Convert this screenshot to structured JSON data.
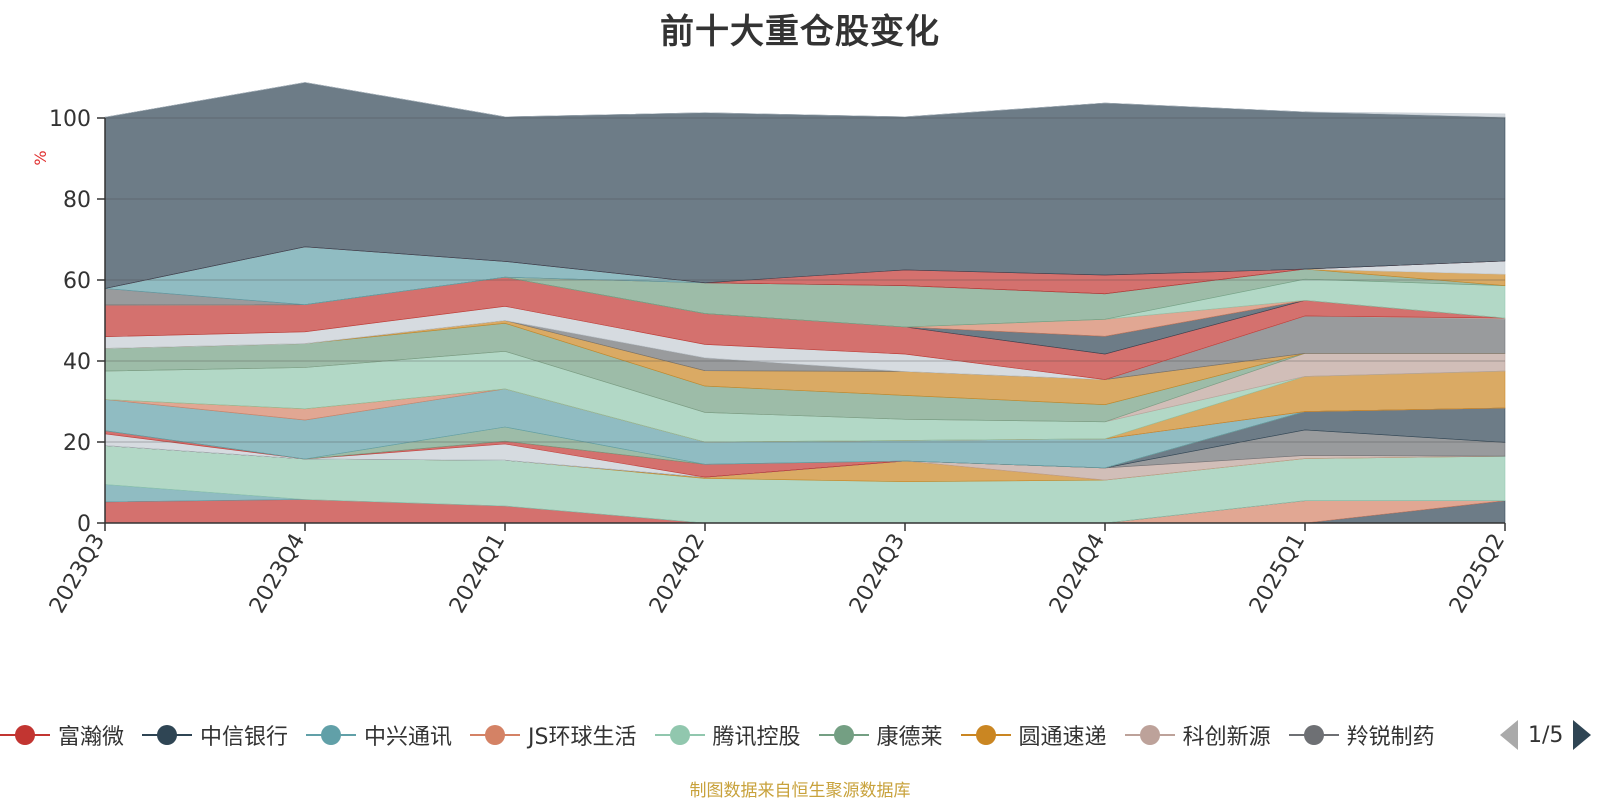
{
  "chart_data": {
    "type": "area",
    "stacked": true,
    "title": "前十大重仓股变化",
    "ylabel": "%",
    "ylim": [
      0,
      100
    ],
    "yticks": [
      0,
      20,
      40,
      60,
      80,
      100
    ],
    "grid": true,
    "categories": [
      "2023Q3",
      "2023Q4",
      "2024Q1",
      "2024Q2",
      "2024Q3",
      "2024Q4",
      "2025Q1",
      "2025Q2"
    ],
    "series": [
      {
        "name": "",
        "color": "#2f4554",
        "values": [
          0,
          0,
          0,
          0,
          0,
          0,
          0,
          5.5
        ]
      },
      {
        "name": "JS环球生活",
        "color": "#d48265",
        "values": [
          0,
          0,
          0,
          0,
          0,
          0,
          5.5,
          0
        ]
      },
      {
        "name": "富瀚微",
        "color": "#c23531",
        "values": [
          5.2,
          5.8,
          4.2,
          0,
          0,
          0,
          0,
          0
        ]
      },
      {
        "name": "中兴通讯",
        "color": "#61a0a8",
        "values": [
          4.3,
          0,
          0,
          0,
          0,
          0,
          0,
          0
        ]
      },
      {
        "name": "腾讯控股",
        "color": "#91c7ae",
        "values": [
          9.6,
          10.0,
          11.3,
          11.0,
          10.2,
          10.6,
          10.4,
          11.0
        ]
      },
      {
        "name": "圆通速递",
        "color": "#ca8622",
        "values": [
          0,
          0,
          0,
          0.3,
          5.1,
          0,
          0,
          0
        ]
      },
      {
        "name": "科创新源",
        "color": "#bda29a",
        "values": [
          0,
          0,
          0,
          0,
          0,
          3.0,
          0.8,
          0
        ]
      },
      {
        "name": "",
        "color": "#6e7074",
        "values": [
          0,
          0,
          0,
          0,
          0,
          0,
          6.3,
          3.4
        ]
      },
      {
        "name": "中信银行",
        "color": "#2f4554",
        "values": [
          0,
          0,
          0,
          0,
          0,
          0,
          4.5,
          8.5
        ]
      },
      {
        "name": "",
        "color": "#c4ccd3",
        "values": [
          2.9,
          0,
          4.0,
          0,
          0,
          0,
          0,
          0
        ]
      },
      {
        "name": "富瀚微",
        "color": "#c23531",
        "values": [
          0.8,
          0,
          0.7,
          3.2,
          0,
          0,
          0,
          0
        ]
      },
      {
        "name": "康德莱",
        "color": "#749f83",
        "values": [
          0,
          0,
          3.5,
          0,
          0,
          0,
          0,
          0
        ]
      },
      {
        "name": "中兴通讯",
        "color": "#61a0a8",
        "values": [
          7.7,
          9.6,
          9.4,
          5.5,
          5.1,
          7.2,
          0,
          0
        ]
      },
      {
        "name": "JS环球生活",
        "color": "#d48265",
        "values": [
          0,
          2.8,
          0,
          0,
          0,
          0,
          0,
          0
        ]
      },
      {
        "name": "圆通速递",
        "color": "#ca8622",
        "values": [
          0,
          0,
          0,
          0,
          0,
          0,
          8.7,
          9.1
        ]
      },
      {
        "name": "腾讯控股",
        "color": "#91c7ae",
        "values": [
          7.0,
          10.2,
          9.3,
          7.3,
          5.2,
          4.2,
          0,
          0
        ]
      },
      {
        "name": "科创新源",
        "color": "#bda29a",
        "values": [
          0,
          0,
          0,
          0,
          0,
          0,
          5.7,
          4.4
        ]
      },
      {
        "name": "康德莱",
        "color": "#749f83",
        "values": [
          5.6,
          5.9,
          6.9,
          6.5,
          5.9,
          4.2,
          0,
          0
        ]
      },
      {
        "name": "圆通速递",
        "color": "#ca8622",
        "values": [
          0,
          0,
          0.7,
          3.8,
          5.9,
          6.2,
          0,
          0
        ]
      },
      {
        "name": "",
        "color": "#6e7074",
        "values": [
          0,
          0,
          0,
          3.2,
          0,
          0,
          9.2,
          8.5
        ]
      },
      {
        "name": "",
        "color": "#c4ccd3",
        "values": [
          2.9,
          2.9,
          3.5,
          3.3,
          4.3,
          0,
          0,
          0
        ]
      },
      {
        "name": "科创新源",
        "color": "#bda29a",
        "values": [
          0,
          0,
          0,
          0,
          0,
          0,
          0,
          0.2
        ]
      },
      {
        "name": "富瀚微",
        "color": "#c23531",
        "values": [
          7.8,
          6.7,
          7.2,
          7.6,
          6.7,
          6.3,
          3.9,
          0
        ]
      },
      {
        "name": "中信银行",
        "color": "#2f4554",
        "values": [
          0,
          0,
          0,
          0,
          0,
          4.4,
          0,
          0
        ]
      },
      {
        "name": "JS环球生活",
        "color": "#d48265",
        "values": [
          0,
          0,
          0,
          0,
          0,
          4.2,
          0,
          0
        ]
      },
      {
        "name": "腾讯控股",
        "color": "#91c7ae",
        "values": [
          0,
          0,
          0,
          0,
          0,
          0,
          5.2,
          8.0
        ]
      },
      {
        "name": "康德莱",
        "color": "#749f83",
        "values": [
          0,
          0,
          0,
          7.6,
          10.2,
          6.3,
          2.5,
          0
        ]
      },
      {
        "name": "圆通速递",
        "color": "#ca8622",
        "values": [
          0,
          0,
          0,
          0,
          0,
          0,
          0,
          2.8
        ]
      },
      {
        "name": "",
        "color": "#c4ccd3",
        "values": [
          0,
          0,
          0,
          0,
          0,
          0,
          0,
          3.3
        ]
      },
      {
        "name": "",
        "color": "#6e7074",
        "values": [
          4.1,
          0,
          0,
          0,
          0,
          0,
          0,
          0
        ]
      },
      {
        "name": "中兴通讯",
        "color": "#61a0a8",
        "values": [
          0,
          14.3,
          3.9,
          0,
          0,
          0,
          0,
          0
        ]
      },
      {
        "name": "富瀚微",
        "color": "#c23531",
        "values": [
          0,
          0,
          0,
          0,
          3.9,
          4.6,
          0,
          0
        ]
      },
      {
        "name": "中信银行",
        "color": "#2f4554",
        "values": [
          42.3,
          40.6,
          35.7,
          42.0,
          37.8,
          42.5,
          38.8,
          35.5
        ]
      },
      {
        "name": "",
        "color": "#c4ccd3",
        "values": [
          0,
          0,
          0,
          0,
          0,
          0,
          0,
          0.8
        ]
      }
    ],
    "legend": {
      "position": "bottom",
      "items": [
        {
          "name": "富瀚微",
          "color": "#c23531"
        },
        {
          "name": "中信银行",
          "color": "#2f4554"
        },
        {
          "name": "中兴通讯",
          "color": "#61a0a8"
        },
        {
          "name": "JS环球生活",
          "color": "#d48265"
        },
        {
          "name": "腾讯控股",
          "color": "#91c7ae"
        },
        {
          "name": "康德莱",
          "color": "#749f83"
        },
        {
          "name": "圆通速递",
          "color": "#ca8622"
        },
        {
          "name": "科创新源",
          "color": "#bda29a"
        },
        {
          "name": "羚锐制药",
          "color": "#6e7074"
        }
      ]
    }
  },
  "legend_pager": {
    "label": "1/5"
  },
  "source_note": "制图数据来自恒生聚源数据库"
}
